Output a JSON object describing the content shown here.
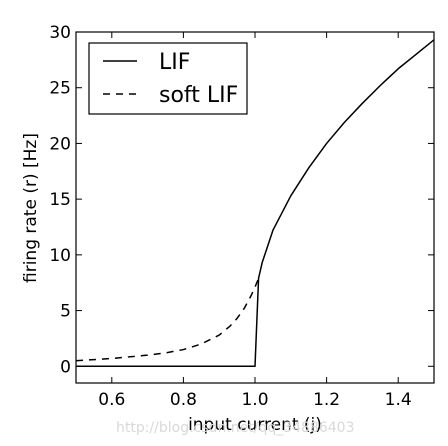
{
  "chart_data": {
    "type": "line",
    "xlabel": "input current (j)",
    "ylabel": "firing rate (r) [Hz]",
    "xlim": [
      0.5,
      1.5
    ],
    "ylim": [
      -1.5,
      30
    ],
    "xticks": [
      0.6,
      0.8,
      1.0,
      1.2,
      1.4
    ],
    "xtick_labels": [
      "0.6",
      "0.8",
      "1.0",
      "1.2",
      "1.4"
    ],
    "yticks": [
      0,
      5,
      10,
      15,
      20,
      25,
      30
    ],
    "ytick_labels": [
      "0",
      "5",
      "10",
      "15",
      "20",
      "25",
      "30"
    ],
    "grid": false,
    "legend_position": "top-left",
    "series": [
      {
        "name": "LIF",
        "style": "solid",
        "color": "#000000",
        "x": [
          0.5,
          0.6,
          0.7,
          0.8,
          0.9,
          0.99,
          1.0,
          1.01,
          1.02,
          1.05,
          1.1,
          1.15,
          1.2,
          1.25,
          1.3,
          1.35,
          1.4,
          1.45,
          1.5
        ],
        "y": [
          0,
          0,
          0,
          0,
          0,
          0,
          0,
          7.9,
          9.3,
          12.2,
          15.3,
          17.8,
          20.0,
          21.9,
          23.6,
          25.2,
          26.7,
          28.0,
          29.3
        ]
      },
      {
        "name": "soft LIF",
        "style": "dashed",
        "color": "#000000",
        "x": [
          0.5,
          0.55,
          0.6,
          0.65,
          0.7,
          0.75,
          0.8,
          0.85,
          0.9,
          0.93,
          0.95,
          0.97,
          0.99,
          1.0,
          1.01
        ],
        "y": [
          0.5,
          0.6,
          0.7,
          0.85,
          1.0,
          1.2,
          1.5,
          2.0,
          2.8,
          3.6,
          4.3,
          5.2,
          6.4,
          7.1,
          7.9
        ]
      }
    ]
  },
  "watermark": "http://blog.csdn.net/qq_34886403"
}
